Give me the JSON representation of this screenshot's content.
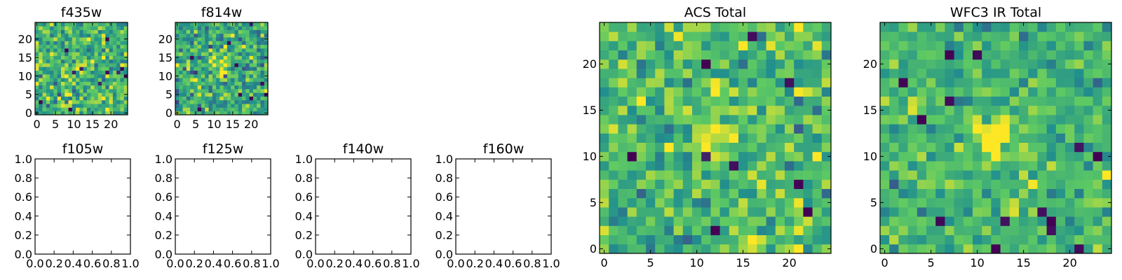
{
  "colormap": [
    "#440154",
    "#3b528b",
    "#21908d",
    "#5dc963",
    "#fde725"
  ],
  "chart_data": [
    {
      "type": "heatmap",
      "title": "f435w",
      "size": 25,
      "xticks": [
        "0",
        "5",
        "10",
        "15",
        "20"
      ],
      "yticks": [
        "0",
        "5",
        "10",
        "15",
        "20"
      ],
      "xlim": [
        -0.5,
        24.5
      ],
      "ylim": [
        -0.5,
        24.5
      ],
      "seed": 11,
      "sigma": 0.9,
      "outliers": 10,
      "source": {
        "x": 11.5,
        "y": 11.5,
        "amp": 0.7,
        "w": 1.6
      }
    },
    {
      "type": "heatmap",
      "title": "f814w",
      "size": 25,
      "xticks": [
        "0",
        "5",
        "10",
        "15",
        "20"
      ],
      "yticks": [
        "0",
        "5",
        "10",
        "15",
        "20"
      ],
      "xlim": [
        -0.5,
        24.5
      ],
      "ylim": [
        -0.5,
        24.5
      ],
      "seed": 23,
      "sigma": 0.9,
      "outliers": 8,
      "source": {
        "x": 12,
        "y": 12,
        "amp": 1.6,
        "w": 1.8
      }
    },
    {
      "type": "heatmap",
      "title": "f105w",
      "empty": true,
      "xticks": [
        "0.0",
        "0.2",
        "0.4",
        "0.6",
        "0.8",
        "1.0"
      ],
      "yticks": [
        "0.0",
        "0.2",
        "0.4",
        "0.6",
        "0.8",
        "1.0"
      ],
      "xlim": [
        0,
        1
      ],
      "ylim": [
        0,
        1
      ]
    },
    {
      "type": "heatmap",
      "title": "f125w",
      "empty": true,
      "xticks": [
        "0.0",
        "0.2",
        "0.4",
        "0.6",
        "0.8",
        "1.0"
      ],
      "yticks": [
        "0.0",
        "0.2",
        "0.4",
        "0.6",
        "0.8",
        "1.0"
      ],
      "xlim": [
        0,
        1
      ],
      "ylim": [
        0,
        1
      ]
    },
    {
      "type": "heatmap",
      "title": "f140w",
      "empty": true,
      "xticks": [
        "0.0",
        "0.2",
        "0.4",
        "0.6",
        "0.8",
        "1.0"
      ],
      "yticks": [
        "0.0",
        "0.2",
        "0.4",
        "0.6",
        "0.8",
        "1.0"
      ],
      "xlim": [
        0,
        1
      ],
      "ylim": [
        0,
        1
      ]
    },
    {
      "type": "heatmap",
      "title": "f160w",
      "empty": true,
      "xticks": [
        "0.0",
        "0.2",
        "0.4",
        "0.6",
        "0.8",
        "1.0"
      ],
      "yticks": [
        "0.0",
        "0.2",
        "0.4",
        "0.6",
        "0.8",
        "1.0"
      ],
      "xlim": [
        0,
        1
      ],
      "ylim": [
        0,
        1
      ]
    },
    {
      "type": "heatmap",
      "title": "ACS Total",
      "size": 25,
      "xticks": [
        "0",
        "5",
        "10",
        "15",
        "20"
      ],
      "yticks": [
        "0",
        "5",
        "10",
        "15",
        "20"
      ],
      "xlim": [
        -0.5,
        24.5
      ],
      "ylim": [
        -0.5,
        24.5
      ],
      "seed": 37,
      "sigma": 0.75,
      "outliers": 10,
      "source": {
        "x": 12,
        "y": 12,
        "amp": 2.2,
        "w": 1.2
      }
    },
    {
      "type": "heatmap",
      "title": "WFC3 IR Total",
      "size": 25,
      "xticks": [
        "0",
        "5",
        "10",
        "15",
        "20"
      ],
      "yticks": [
        "0",
        "5",
        "10",
        "15",
        "20"
      ],
      "xlim": [
        -0.5,
        24.5
      ],
      "ylim": [
        -0.5,
        24.5
      ],
      "seed": 53,
      "sigma": 0.6,
      "outliers": 14,
      "source": {
        "x": 11.5,
        "y": 12,
        "amp": 3.0,
        "w": 1.4
      }
    }
  ]
}
